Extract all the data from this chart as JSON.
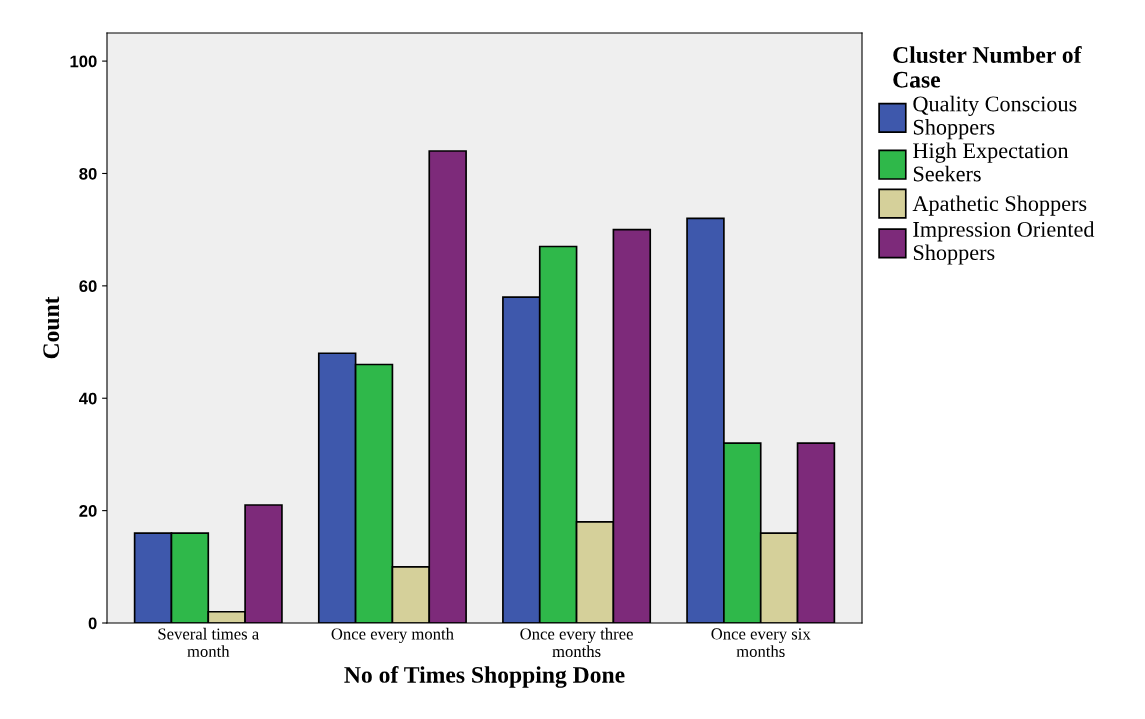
{
  "chart_data": {
    "type": "bar",
    "xlabel": "No of Times Shopping Done",
    "ylabel": "Count",
    "legend_title": "Cluster Number of\nCase",
    "categories": [
      "Several times a\nmonth",
      "Once every month",
      "Once every three\nmonths",
      "Once every six\nmonths"
    ],
    "series": [
      {
        "name": "Quality Conscious\nShoppers",
        "color": "#3e58ac",
        "values": [
          16,
          48,
          58,
          72
        ]
      },
      {
        "name": "High Expectation\nSeekers",
        "color": "#2fb84a",
        "values": [
          16,
          46,
          67,
          32
        ]
      },
      {
        "name": "Apathetic Shoppers",
        "color": "#d5d09a",
        "values": [
          2,
          10,
          18,
          16
        ]
      },
      {
        "name": "Impression Oriented\nShoppers",
        "color": "#7d2a7a",
        "values": [
          21,
          84,
          70,
          32
        ]
      }
    ],
    "ylim": [
      0,
      105
    ],
    "yticks": [
      0,
      20,
      40,
      60,
      80,
      100
    ],
    "grid": false,
    "legend": "right"
  }
}
